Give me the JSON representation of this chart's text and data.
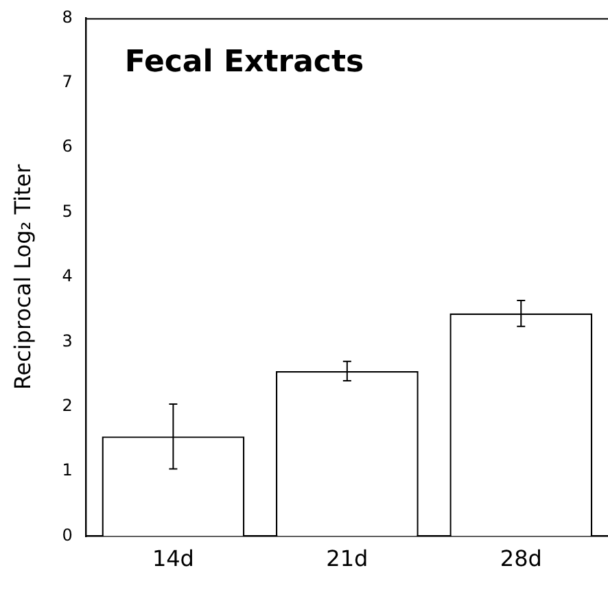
{
  "chart_data": {
    "type": "bar",
    "title": "Fecal Extracts",
    "ylabel": "Reciprocal Log₂ Titer",
    "categories": [
      "14d",
      "21d",
      "28d"
    ],
    "values": [
      1.54,
      2.55,
      3.44
    ],
    "errors": [
      0.5,
      0.15,
      0.2
    ],
    "color": "#ffffff",
    "ylim": [
      0,
      8
    ],
    "yticks": [
      0,
      1,
      2,
      3,
      4,
      5,
      6,
      7,
      8
    ],
    "grid": false,
    "legend": false
  }
}
